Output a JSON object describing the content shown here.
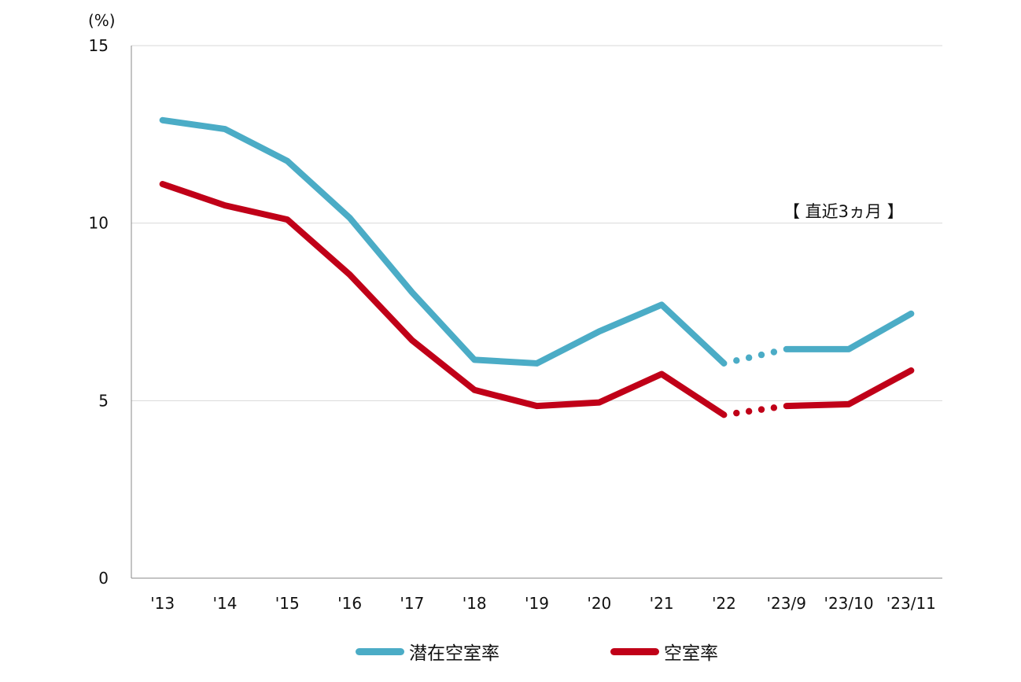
{
  "chart_data": {
    "type": "line",
    "unit_label": "(%)",
    "annotation": "【 直近3ヵ月 】",
    "categories": [
      "'13",
      "'14",
      "'15",
      "'16",
      "'17",
      "'18",
      "'19",
      "'20",
      "'21",
      "'22",
      "'23/9",
      "'23/10",
      "'23/11"
    ],
    "ylim": [
      0,
      15
    ],
    "yticks": [
      0,
      5,
      10,
      15
    ],
    "grid": true,
    "legend_position": "bottom",
    "series": [
      {
        "name": "潜在空室率",
        "color": "#4bacc6",
        "values": [
          12.9,
          12.65,
          11.75,
          10.15,
          8.05,
          6.15,
          6.05,
          6.95,
          7.7,
          6.05,
          6.45,
          6.45,
          7.45
        ]
      },
      {
        "name": "空室率",
        "color": "#c00018",
        "values": [
          11.1,
          10.5,
          10.1,
          8.55,
          6.7,
          5.3,
          4.85,
          4.95,
          5.75,
          4.6,
          4.85,
          4.9,
          5.85
        ]
      }
    ],
    "dotted_segment": {
      "from_category": "'22",
      "to_category": "'23/9"
    }
  }
}
